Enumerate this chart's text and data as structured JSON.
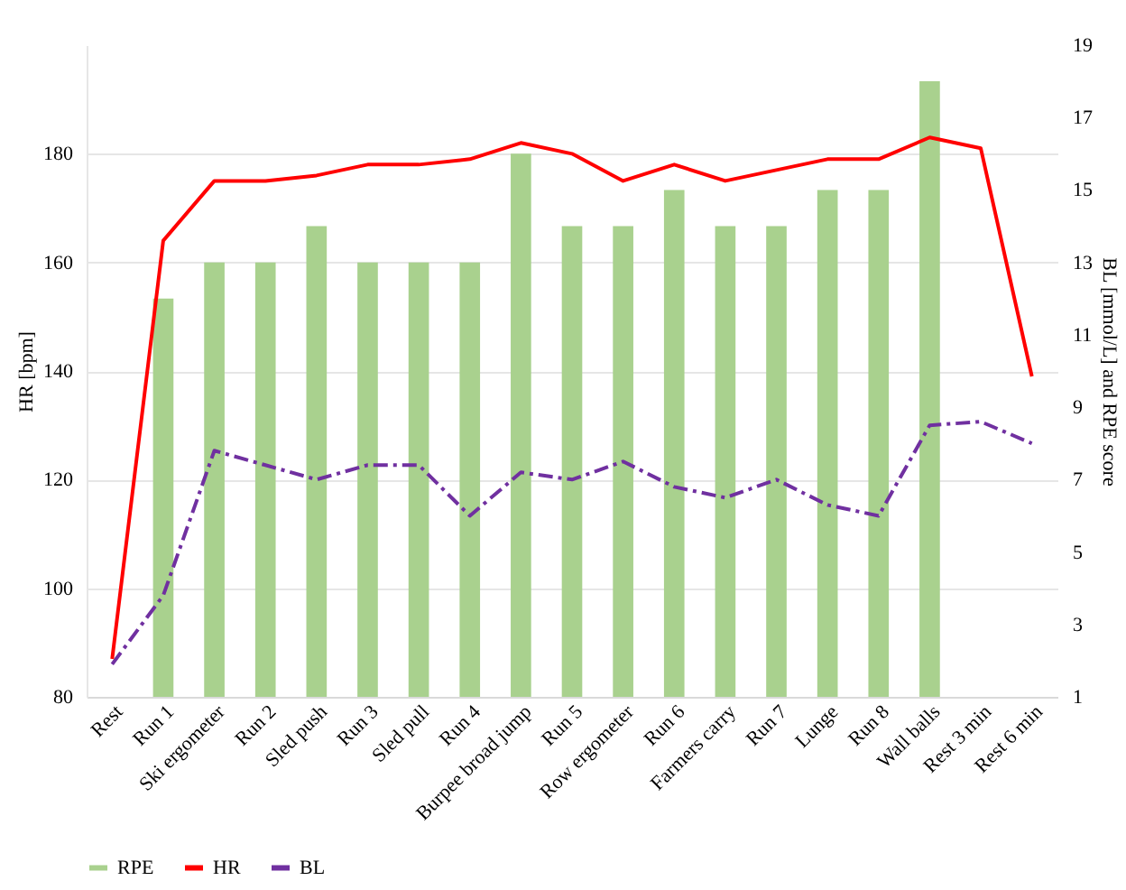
{
  "chart_data": {
    "type": "bar",
    "xlabel": null,
    "ylabel": "HR [bpm]",
    "y2label": "BL [mmol/L] and RPE score",
    "categories": [
      "Rest",
      "Run 1",
      "Ski ergometer",
      "Run 2",
      "Sled push",
      "Run 3",
      "Sled pull",
      "Run 4",
      "Burpee broad jump",
      "Run 5",
      "Row ergometer",
      "Run 6",
      "Farmers carry",
      "Run 7",
      "Lunge",
      "Run 8",
      "Wall balls",
      "Rest 3 min",
      "Rest 6 min"
    ],
    "series": [
      {
        "name": "RPE",
        "axis": "y2",
        "color": "#a9d18e",
        "values": [
          null,
          12,
          13,
          13,
          14,
          13,
          13,
          13,
          16,
          14,
          14,
          15,
          14,
          14,
          15,
          15,
          18,
          null,
          null
        ]
      },
      {
        "name": "HR",
        "type": "line",
        "axis": "y",
        "color": "#ff0000",
        "line_style": "solid",
        "values": [
          87,
          164,
          175,
          175,
          176,
          178,
          178,
          179,
          182,
          180,
          175,
          178,
          175,
          177,
          179,
          179,
          183,
          181,
          139
        ]
      },
      {
        "name": "BL",
        "type": "line",
        "axis": "y2",
        "color": "#7030a0",
        "line_style": "dashed",
        "values": [
          1.9,
          3.8,
          7.8,
          7.4,
          7.0,
          7.4,
          7.4,
          6.0,
          7.2,
          7.0,
          7.5,
          6.8,
          6.5,
          7.0,
          6.3,
          6.0,
          8.5,
          8.6,
          8.0
        ]
      }
    ],
    "ylim": [
      80,
      200
    ],
    "yticks": [
      80,
      100,
      120,
      140,
      160,
      180
    ],
    "y2lim": [
      1,
      19
    ],
    "y2ticks": [
      1,
      3,
      5,
      7,
      9,
      11,
      13,
      15,
      17,
      19
    ],
    "grid": "y",
    "legend": "bottom"
  }
}
